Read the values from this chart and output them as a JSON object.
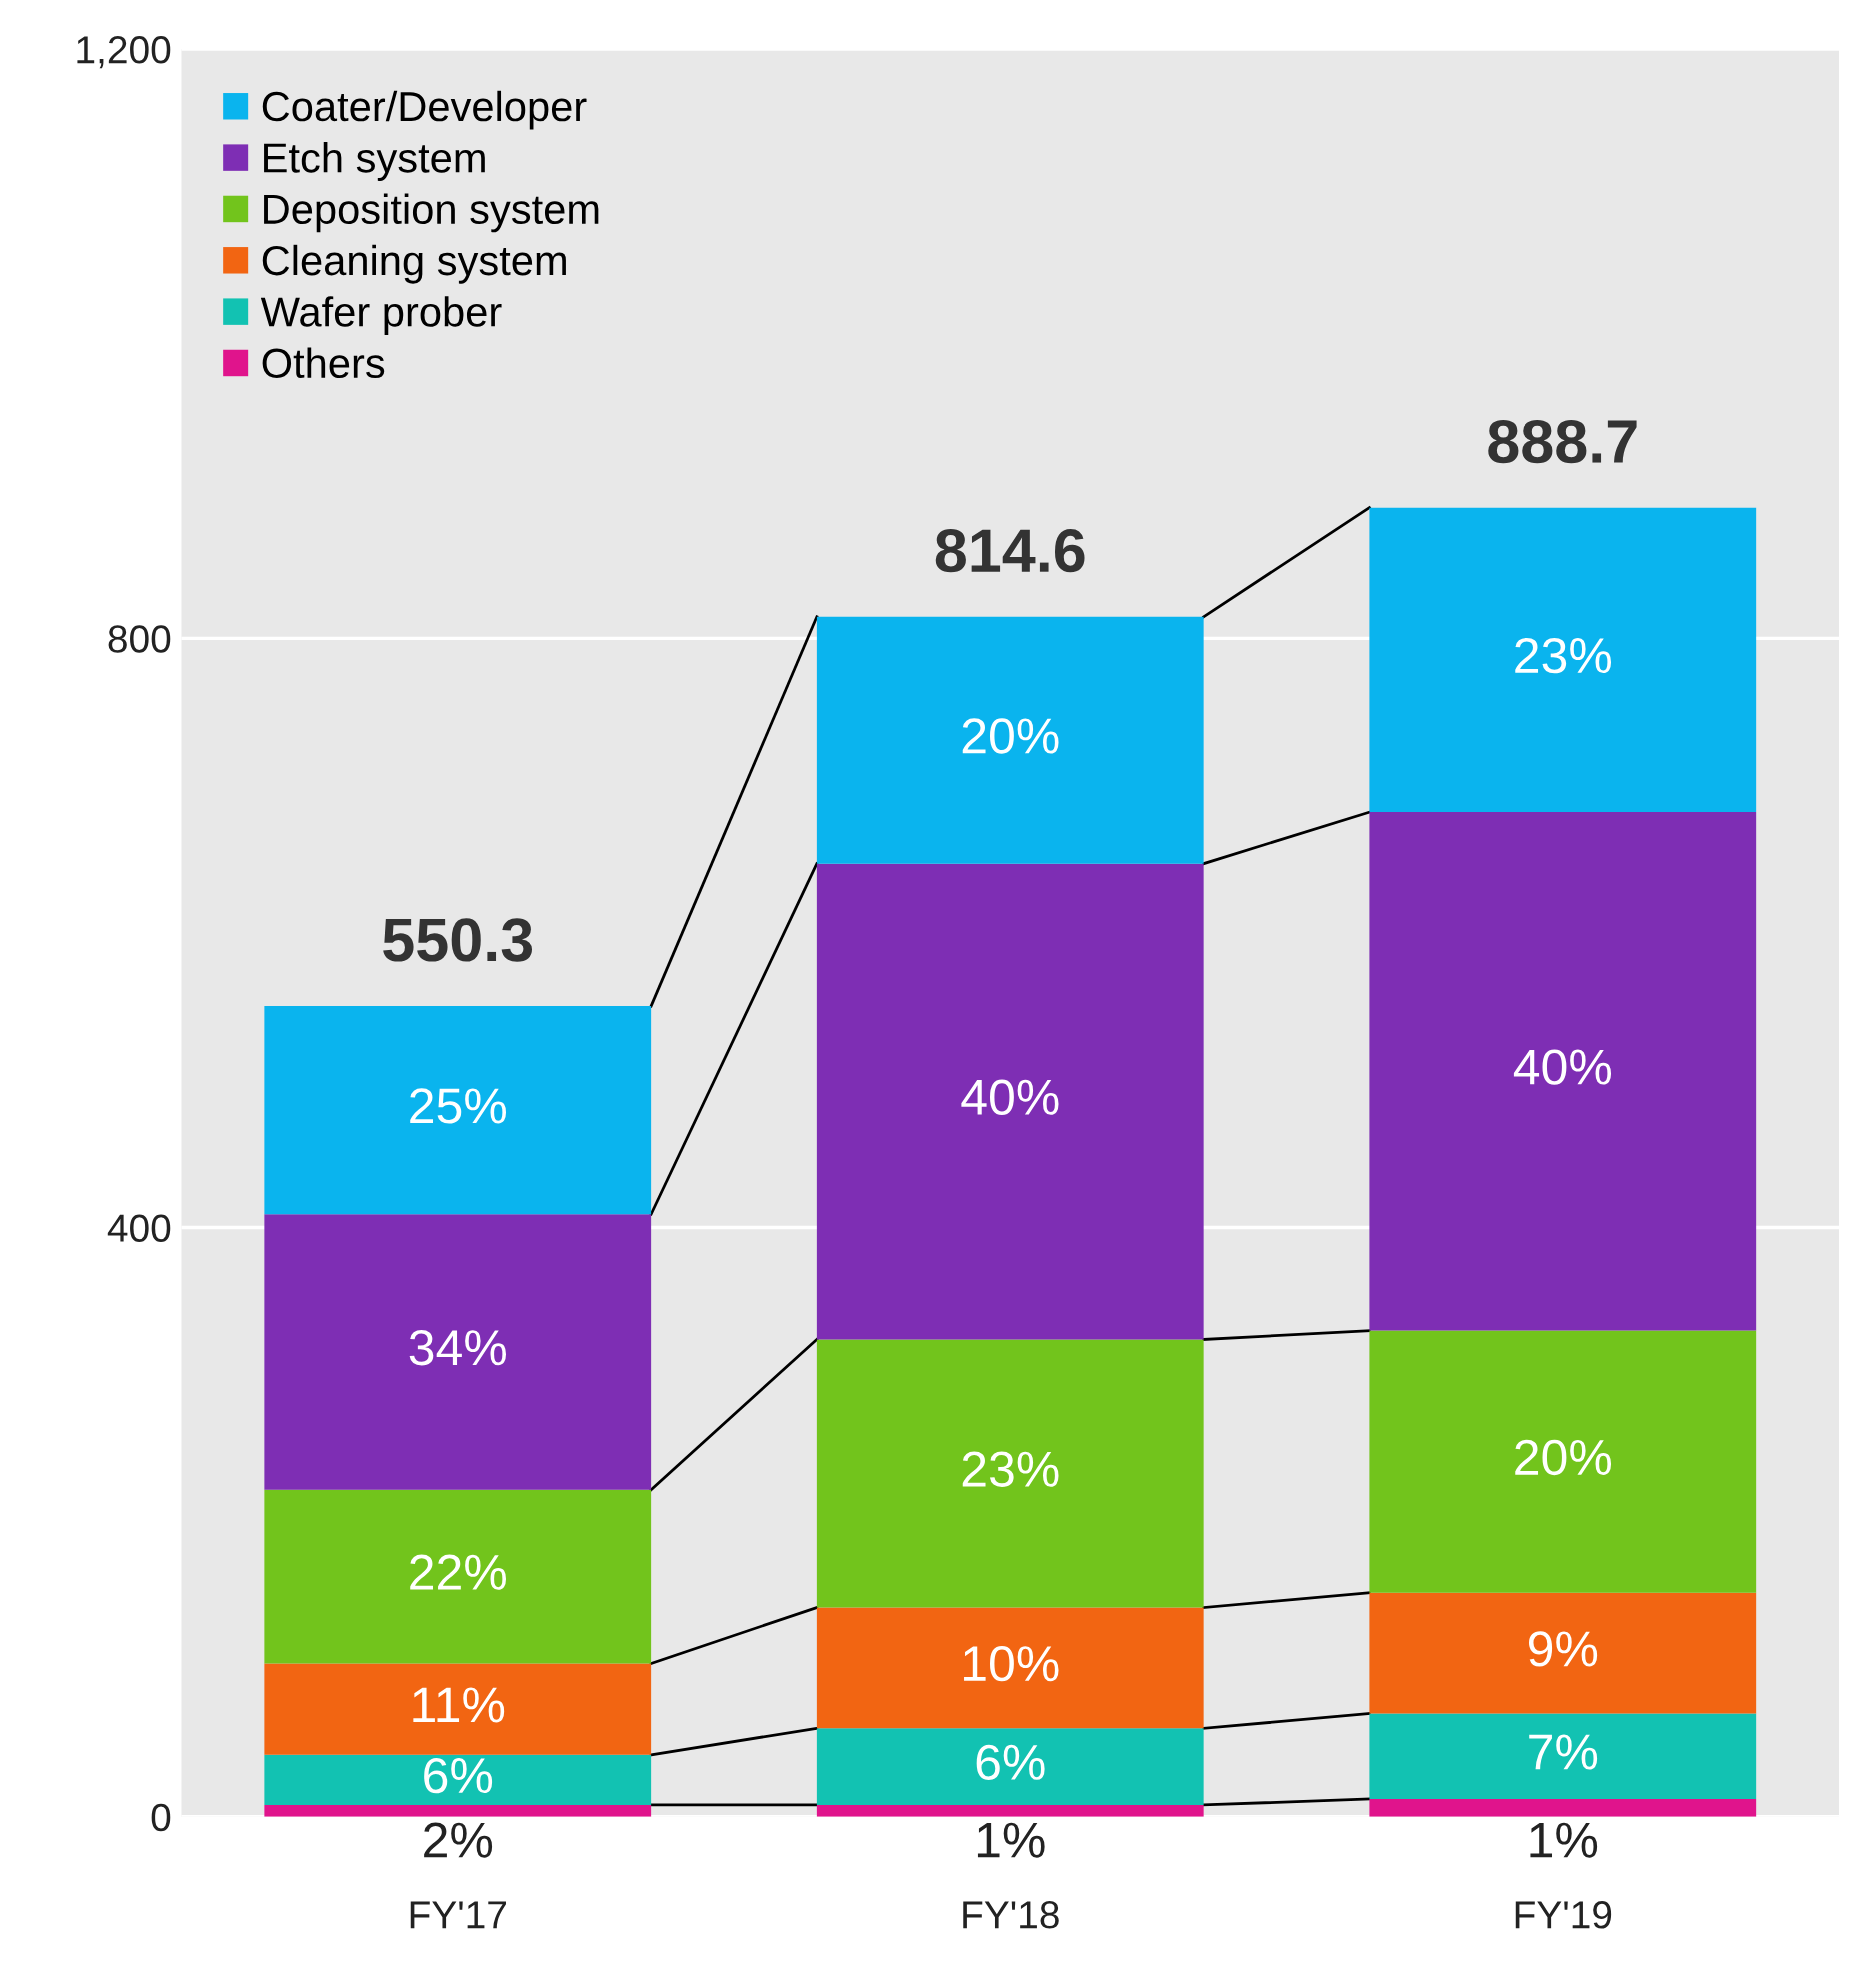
{
  "chart_data": {
    "type": "bar",
    "stacked": true,
    "categories": [
      "FY'17",
      "FY'18",
      "FY'19"
    ],
    "ylim": [
      0,
      1200
    ],
    "yticks": [
      0,
      400,
      800,
      {
        "value": 1200,
        "label": "1,200"
      }
    ],
    "grid": "y",
    "legend": "top left",
    "series": [
      {
        "name": "Others",
        "color": "#e0148c",
        "values": [
          8,
          8,
          12
        ]
      },
      {
        "name": "Wafer prober",
        "color": "#12c2b2",
        "values": [
          34,
          52,
          58
        ]
      },
      {
        "name": "Cleaning system",
        "color": "#f26512",
        "values": [
          62,
          82,
          82
        ]
      },
      {
        "name": "Deposition system",
        "color": "#72c41c",
        "values": [
          118,
          182,
          178
        ]
      },
      {
        "name": "Etch system",
        "color": "#7e2eb4",
        "values": [
          187,
          323,
          352
        ]
      },
      {
        "name": "Coater/Developer",
        "color": "#0ab4ee",
        "values": [
          141.3,
          167.6,
          206.7
        ]
      }
    ],
    "annotations": [
      "2%",
      "1%",
      "1%",
      "6%",
      "6%",
      "7%",
      "11%",
      "10%",
      "9%",
      "22%",
      "23%",
      "20%",
      "34%",
      "40%",
      "40%",
      "25%",
      "20%",
      "23%"
    ],
    "totals": [
      "550.3",
      "814.6",
      "888.7"
    ]
  }
}
